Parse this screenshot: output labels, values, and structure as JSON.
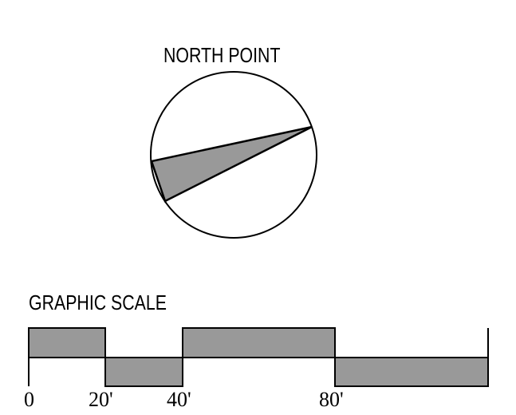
{
  "north_point": {
    "title": "NORTH POINT"
  },
  "graphic_scale": {
    "title": "GRAPHIC SCALE",
    "ticks": [
      "0",
      "20'",
      "40'",
      "80'"
    ]
  },
  "colors": {
    "fill": "#999999",
    "stroke": "#000000",
    "background": "#ffffff"
  }
}
